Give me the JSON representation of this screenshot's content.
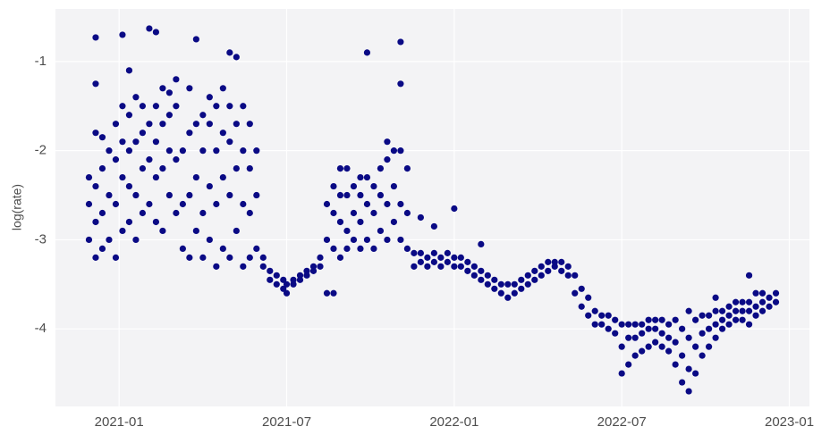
{
  "chart_data": {
    "type": "scatter",
    "ylabel": "log(rate)",
    "color": "#0a0a85",
    "grid": true,
    "xlim": [
      2020.81,
      2023.06
    ],
    "ylim": [
      -4.87,
      -0.41
    ],
    "xticks": [
      {
        "value": 2021.0,
        "label": "2021-01"
      },
      {
        "value": 2021.5,
        "label": "2021-07"
      },
      {
        "value": 2022.0,
        "label": "2022-01"
      },
      {
        "value": 2022.5,
        "label": "2022-07"
      },
      {
        "value": 2023.0,
        "label": "2023-01"
      }
    ],
    "yticks": [
      -1,
      -2,
      -3,
      -4
    ],
    "x": [
      2020.91,
      2020.91,
      2020.91,
      2020.93,
      2020.93,
      2020.93,
      2020.93,
      2020.93,
      2020.93,
      2020.95,
      2020.95,
      2020.95,
      2020.95,
      2020.97,
      2020.97,
      2020.97,
      2020.99,
      2020.99,
      2020.99,
      2020.99,
      2021.01,
      2021.01,
      2021.01,
      2021.01,
      2021.01,
      2021.03,
      2021.03,
      2021.03,
      2021.03,
      2021.03,
      2021.05,
      2021.05,
      2021.05,
      2021.05,
      2021.07,
      2021.07,
      2021.07,
      2021.07,
      2021.09,
      2021.09,
      2021.09,
      2021.09,
      2021.11,
      2021.11,
      2021.11,
      2021.11,
      2021.11,
      2021.13,
      2021.13,
      2021.13,
      2021.13,
      2021.15,
      2021.15,
      2021.15,
      2021.15,
      2021.17,
      2021.17,
      2021.17,
      2021.17,
      2021.19,
      2021.19,
      2021.19,
      2021.21,
      2021.21,
      2021.21,
      2021.21,
      2021.23,
      2021.23,
      2021.23,
      2021.23,
      2021.25,
      2021.25,
      2021.25,
      2021.25,
      2021.27,
      2021.27,
      2021.27,
      2021.27,
      2021.29,
      2021.29,
      2021.29,
      2021.29,
      2021.31,
      2021.31,
      2021.31,
      2021.31,
      2021.33,
      2021.33,
      2021.33,
      2021.33,
      2021.33,
      2021.35,
      2021.35,
      2021.35,
      2021.35,
      2021.37,
      2021.37,
      2021.37,
      2021.37,
      2021.39,
      2021.39,
      2021.39,
      2021.39,
      2021.41,
      2021.41,
      2021.41,
      2021.43,
      2021.43,
      2021.45,
      2021.45,
      2021.47,
      2021.47,
      2021.49,
      2021.49,
      2021.5,
      2021.5,
      2021.52,
      2021.52,
      2021.54,
      2021.54,
      2021.56,
      2021.56,
      2021.58,
      2021.58,
      2021.6,
      2021.6,
      2021.62,
      2021.62,
      2021.62,
      2021.64,
      2021.64,
      2021.64,
      2021.64,
      2021.66,
      2021.66,
      2021.66,
      2021.66,
      2021.68,
      2021.68,
      2021.68,
      2021.68,
      2021.7,
      2021.7,
      2021.7,
      2021.72,
      2021.72,
      2021.72,
      2021.72,
      2021.74,
      2021.74,
      2021.74,
      2021.74,
      2021.76,
      2021.76,
      2021.76,
      2021.78,
      2021.78,
      2021.78,
      2021.8,
      2021.8,
      2021.8,
      2021.8,
      2021.82,
      2021.82,
      2021.82,
      2021.84,
      2021.84,
      2021.84,
      2021.84,
      2021.84,
      2021.86,
      2021.86,
      2021.86,
      2021.88,
      2021.88,
      2021.9,
      2021.9,
      2021.9,
      2021.92,
      2021.92,
      2021.94,
      2021.94,
      2021.94,
      2021.96,
      2021.96,
      2021.98,
      2021.98,
      2022.0,
      2022.0,
      2022.0,
      2022.02,
      2022.02,
      2022.04,
      2022.04,
      2022.06,
      2022.06,
      2022.08,
      2022.08,
      2022.08,
      2022.1,
      2022.1,
      2022.12,
      2022.12,
      2022.14,
      2022.14,
      2022.16,
      2022.16,
      2022.18,
      2022.18,
      2022.2,
      2022.2,
      2022.22,
      2022.22,
      2022.24,
      2022.24,
      2022.26,
      2022.26,
      2022.28,
      2022.28,
      2022.3,
      2022.3,
      2022.32,
      2022.32,
      2022.34,
      2022.34,
      2022.36,
      2022.36,
      2022.38,
      2022.38,
      2022.4,
      2022.4,
      2022.42,
      2022.42,
      2022.44,
      2022.44,
      2022.46,
      2022.46,
      2022.48,
      2022.48,
      2022.5,
      2022.5,
      2022.5,
      2022.52,
      2022.52,
      2022.52,
      2022.54,
      2022.54,
      2022.54,
      2022.56,
      2022.56,
      2022.56,
      2022.58,
      2022.58,
      2022.58,
      2022.6,
      2022.6,
      2022.6,
      2022.62,
      2022.62,
      2022.62,
      2022.64,
      2022.64,
      2022.64,
      2022.66,
      2022.66,
      2022.66,
      2022.68,
      2022.68,
      2022.68,
      2022.7,
      2022.7,
      2022.7,
      2022.7,
      2022.72,
      2022.72,
      2022.72,
      2022.74,
      2022.74,
      2022.74,
      2022.76,
      2022.76,
      2022.76,
      2022.78,
      2022.78,
      2022.78,
      2022.78,
      2022.8,
      2022.8,
      2022.8,
      2022.82,
      2022.82,
      2022.82,
      2022.84,
      2022.84,
      2022.84,
      2022.86,
      2022.86,
      2022.86,
      2022.88,
      2022.88,
      2022.88,
      2022.88,
      2022.9,
      2022.9,
      2022.9,
      2022.92,
      2022.92,
      2022.92,
      2022.94,
      2022.94,
      2022.96,
      2022.96
    ],
    "values": [
      -3.0,
      -2.6,
      -2.3,
      -3.2,
      -2.8,
      -2.4,
      -1.8,
      -1.25,
      -0.73,
      -3.1,
      -2.7,
      -2.2,
      -1.85,
      -3.0,
      -2.5,
      -2.0,
      -3.2,
      -2.6,
      -2.1,
      -1.7,
      -2.9,
      -2.3,
      -1.9,
      -1.5,
      -0.7,
      -2.8,
      -2.4,
      -2.0,
      -1.6,
      -1.1,
      -3.0,
      -2.5,
      -1.9,
      -1.4,
      -2.7,
      -2.2,
      -1.8,
      -1.5,
      -2.6,
      -2.1,
      -1.7,
      -0.63,
      -2.8,
      -2.3,
      -1.9,
      -1.5,
      -0.67,
      -2.9,
      -2.2,
      -1.7,
      -1.3,
      -2.5,
      -2.0,
      -1.6,
      -1.35,
      -2.7,
      -2.1,
      -1.5,
      -1.2,
      -3.1,
      -2.6,
      -2.0,
      -3.2,
      -2.5,
      -1.8,
      -1.3,
      -2.9,
      -2.3,
      -1.7,
      -0.75,
      -3.2,
      -2.7,
      -2.0,
      -1.6,
      -3.0,
      -2.4,
      -1.7,
      -1.4,
      -3.3,
      -2.6,
      -2.0,
      -1.5,
      -3.1,
      -2.3,
      -1.8,
      -1.3,
      -3.2,
      -2.5,
      -1.9,
      -1.5,
      -0.9,
      -2.9,
      -2.2,
      -1.7,
      -0.95,
      -3.3,
      -2.6,
      -2.0,
      -1.5,
      -3.2,
      -2.7,
      -2.2,
      -1.7,
      -3.1,
      -2.5,
      -2.0,
      -3.3,
      -3.2,
      -3.45,
      -3.35,
      -3.5,
      -3.4,
      -3.55,
      -3.45,
      -3.6,
      -3.5,
      -3.5,
      -3.45,
      -3.45,
      -3.4,
      -3.4,
      -3.35,
      -3.35,
      -3.3,
      -3.3,
      -3.2,
      -3.6,
      -3.0,
      -2.6,
      -3.6,
      -3.1,
      -2.7,
      -2.4,
      -3.2,
      -2.8,
      -2.5,
      -2.2,
      -3.1,
      -2.9,
      -2.5,
      -2.2,
      -3.0,
      -2.7,
      -2.4,
      -3.1,
      -2.8,
      -2.5,
      -2.3,
      -3.0,
      -2.6,
      -2.3,
      -0.9,
      -3.1,
      -2.7,
      -2.4,
      -2.9,
      -2.5,
      -2.2,
      -3.0,
      -2.6,
      -2.1,
      -1.9,
      -2.8,
      -2.4,
      -2.0,
      -3.0,
      -2.6,
      -2.0,
      -1.25,
      -0.78,
      -3.1,
      -2.7,
      -2.2,
      -3.3,
      -3.15,
      -3.25,
      -3.15,
      -2.75,
      -3.3,
      -3.2,
      -3.25,
      -3.15,
      -2.85,
      -3.3,
      -3.2,
      -3.25,
      -3.15,
      -3.3,
      -3.2,
      -2.65,
      -3.3,
      -3.2,
      -3.35,
      -3.25,
      -3.4,
      -3.3,
      -3.45,
      -3.35,
      -3.05,
      -3.5,
      -3.4,
      -3.55,
      -3.45,
      -3.6,
      -3.5,
      -3.65,
      -3.5,
      -3.6,
      -3.5,
      -3.55,
      -3.45,
      -3.5,
      -3.4,
      -3.45,
      -3.35,
      -3.4,
      -3.3,
      -3.35,
      -3.25,
      -3.3,
      -3.25,
      -3.35,
      -3.25,
      -3.4,
      -3.3,
      -3.6,
      -3.4,
      -3.75,
      -3.55,
      -3.85,
      -3.65,
      -3.95,
      -3.8,
      -3.95,
      -3.85,
      -4.0,
      -3.85,
      -4.05,
      -3.9,
      -4.5,
      -4.2,
      -3.95,
      -4.4,
      -4.1,
      -3.95,
      -4.3,
      -4.1,
      -3.95,
      -4.25,
      -4.05,
      -3.95,
      -4.2,
      -4.0,
      -3.9,
      -4.15,
      -4.0,
      -3.9,
      -4.2,
      -4.05,
      -3.9,
      -4.25,
      -4.1,
      -3.95,
      -4.4,
      -4.15,
      -3.9,
      -4.6,
      -4.3,
      -4.0,
      -4.7,
      -4.45,
      -4.1,
      -3.8,
      -4.5,
      -4.2,
      -3.9,
      -4.3,
      -4.05,
      -3.85,
      -4.2,
      -4.0,
      -3.85,
      -4.1,
      -3.95,
      -3.8,
      -3.65,
      -4.0,
      -3.9,
      -3.8,
      -3.95,
      -3.85,
      -3.75,
      -3.9,
      -3.8,
      -3.7,
      -3.9,
      -3.8,
      -3.7,
      -3.95,
      -3.8,
      -3.7,
      -3.4,
      -3.85,
      -3.75,
      -3.6,
      -3.8,
      -3.7,
      -3.6,
      -3.75,
      -3.65,
      -3.7,
      -3.6
    ]
  }
}
